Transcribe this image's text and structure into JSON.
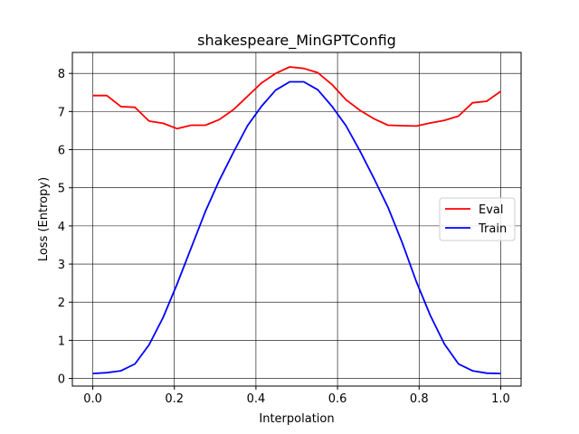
{
  "chart_data": {
    "type": "line",
    "title": "shakespeare_MinGPTConfig",
    "xlabel": "Interpolation",
    "ylabel": "Loss (Entropy)",
    "xlim": [
      -0.05,
      1.05
    ],
    "ylim": [
      -0.2,
      8.55
    ],
    "xticks": [
      0.0,
      0.2,
      0.4,
      0.6,
      0.8,
      1.0
    ],
    "xtick_labels": [
      "0.0",
      "0.2",
      "0.4",
      "0.6",
      "0.8",
      "1.0"
    ],
    "yticks": [
      0,
      1,
      2,
      3,
      4,
      5,
      6,
      7,
      8
    ],
    "ytick_labels": [
      "0",
      "1",
      "2",
      "3",
      "4",
      "5",
      "6",
      "7",
      "8"
    ],
    "grid": true,
    "legend_position": "center-right",
    "x": [
      0.0,
      0.0345,
      0.069,
      0.1034,
      0.1379,
      0.1724,
      0.2069,
      0.2414,
      0.2759,
      0.3103,
      0.3448,
      0.3793,
      0.4138,
      0.4483,
      0.4828,
      0.5172,
      0.5517,
      0.5862,
      0.6207,
      0.6552,
      0.6897,
      0.7241,
      0.7586,
      0.7931,
      0.8276,
      0.8621,
      0.8966,
      0.931,
      0.9655,
      1.0
    ],
    "series": [
      {
        "name": "Eval",
        "color": "#ff0000",
        "values": [
          7.42,
          7.42,
          7.13,
          7.11,
          6.75,
          6.69,
          6.55,
          6.64,
          6.64,
          6.79,
          7.05,
          7.4,
          7.75,
          8.0,
          8.17,
          8.13,
          8.02,
          7.71,
          7.31,
          7.03,
          6.81,
          6.64,
          6.63,
          6.62,
          6.7,
          6.77,
          6.88,
          7.23,
          7.27,
          7.53
        ]
      },
      {
        "name": "Train",
        "color": "#0000ff",
        "values": [
          0.13,
          0.15,
          0.2,
          0.38,
          0.88,
          1.6,
          2.48,
          3.43,
          4.38,
          5.2,
          5.93,
          6.63,
          7.14,
          7.56,
          7.78,
          7.78,
          7.57,
          7.14,
          6.63,
          5.96,
          5.24,
          4.48,
          3.56,
          2.54,
          1.65,
          0.9,
          0.38,
          0.2,
          0.14,
          0.13
        ]
      }
    ]
  }
}
